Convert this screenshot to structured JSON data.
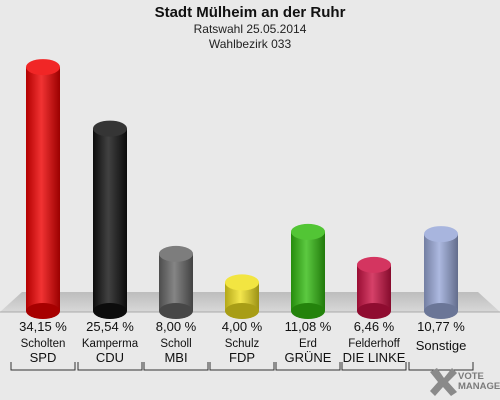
{
  "header": {
    "title": "Stadt Mülheim an der Ruhr",
    "subtitle1": "Ratswahl 25.05.2014",
    "subtitle2": "Wahlbezirk 033"
  },
  "logo": {
    "line1": "VOTE",
    "line2": "MANAGER",
    "icon": "checkmark-x-icon"
  },
  "chart_data": {
    "type": "bar",
    "categories": [
      "SPD",
      "CDU",
      "MBI",
      "FDP",
      "GRÜNE",
      "DIE LINKE",
      "Sonstige"
    ],
    "candidates": [
      "Scholten",
      "Kamperma",
      "Scholl",
      "Schulz",
      "Erd",
      "Felderhoff",
      ""
    ],
    "value_labels": [
      "34,15 %",
      "25,54 %",
      "8,00 %",
      "4,00 %",
      "11,08 %",
      "6,46 %",
      "10,77 %"
    ],
    "values": [
      34.15,
      25.54,
      8.0,
      4.0,
      11.08,
      6.46,
      10.77
    ],
    "colors": [
      "#ee0000",
      "#111111",
      "#666666",
      "#f0e020",
      "#33bb11",
      "#cc1144",
      "#99a8d8"
    ],
    "unit": "%",
    "ylim": [
      0,
      35
    ],
    "grid": false,
    "legend": "none"
  }
}
